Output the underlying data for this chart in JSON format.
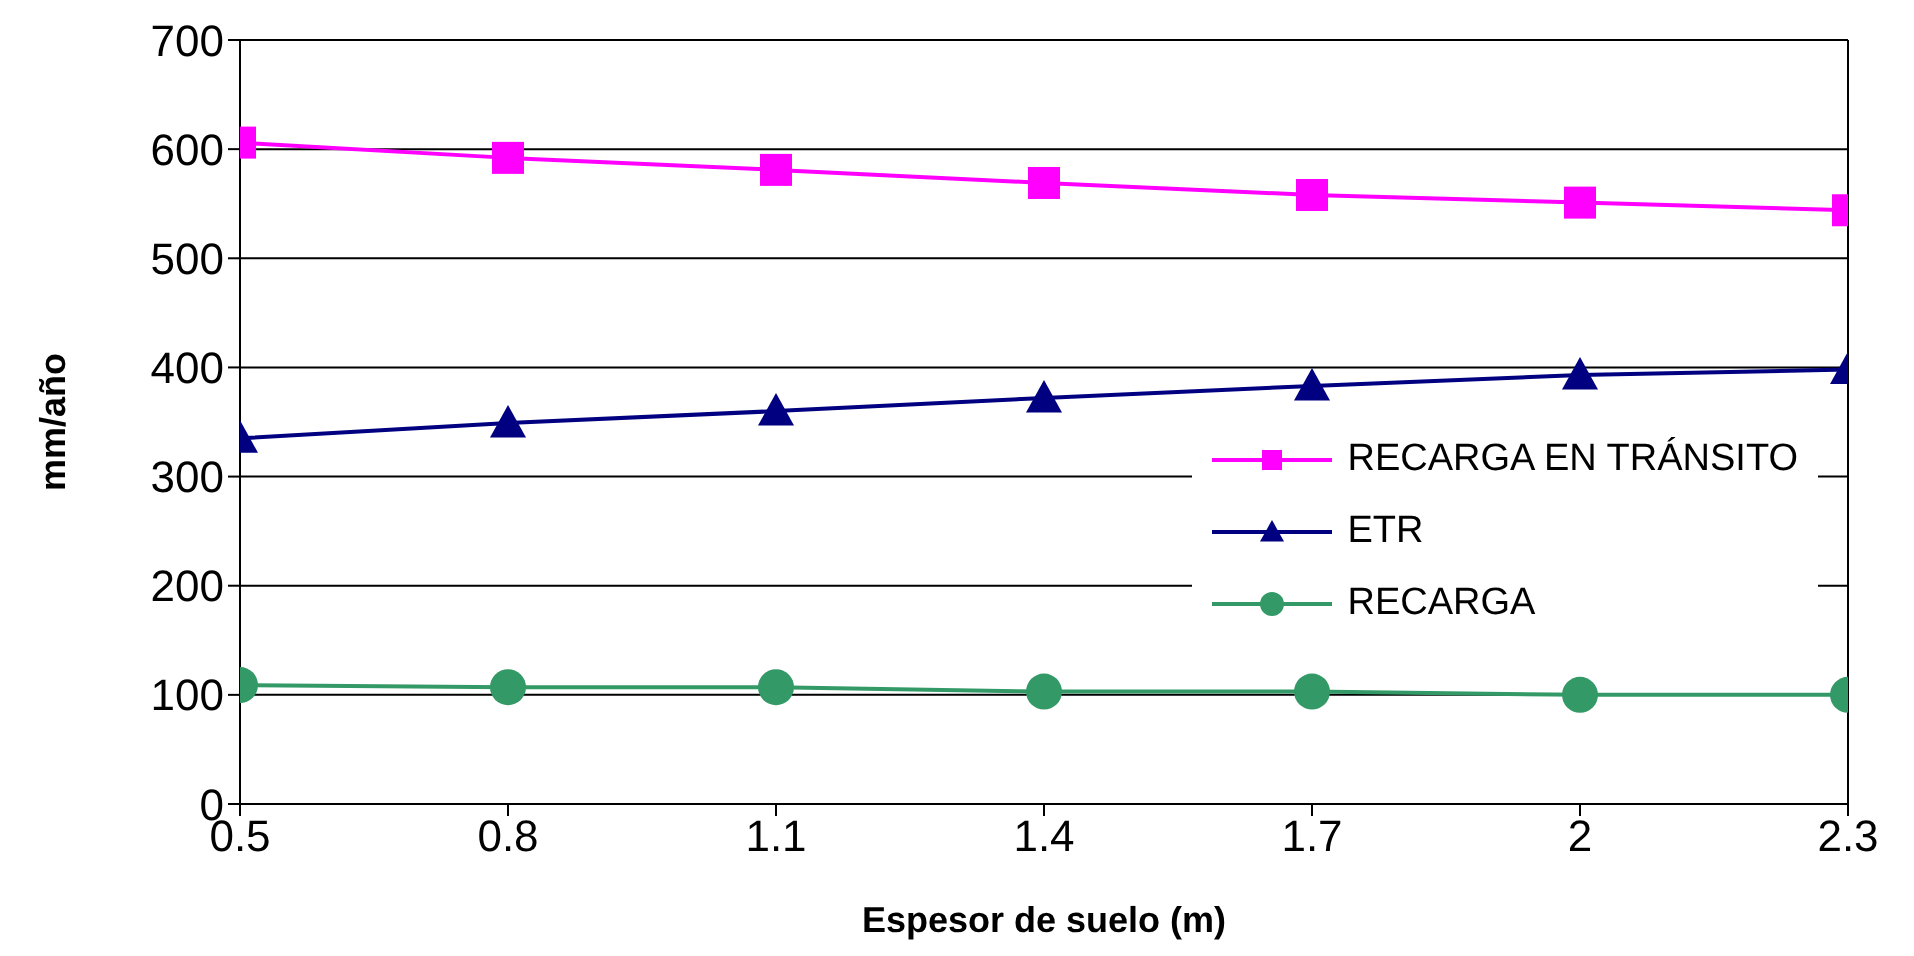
{
  "chart_data": {
    "type": "line",
    "xlabel": "Espesor de suelo (m)",
    "ylabel": "mm/año",
    "x": [
      0.5,
      0.8,
      1.1,
      1.4,
      1.7,
      2,
      2.3
    ],
    "series": [
      {
        "name": "RECARGA EN TRÁNSITO",
        "color": "#ff00ff",
        "marker": "square",
        "values": [
          606,
          592,
          581,
          569,
          558,
          551,
          544
        ]
      },
      {
        "name": "ETR",
        "color": "#000080",
        "marker": "triangle",
        "values": [
          335,
          349,
          360,
          372,
          383,
          393,
          398
        ]
      },
      {
        "name": "RECARGA",
        "color": "#339966",
        "marker": "circle",
        "values": [
          109,
          107,
          107,
          103,
          103,
          100,
          100
        ]
      }
    ],
    "xlim": [
      0.5,
      2.3
    ],
    "xticks": [
      0.5,
      0.8,
      1.1,
      1.4,
      1.7,
      2,
      2.3
    ],
    "ylim": [
      0,
      700
    ],
    "yticks": [
      0,
      100,
      200,
      300,
      400,
      500,
      600,
      700
    ],
    "grid": "y",
    "legend": "right"
  }
}
